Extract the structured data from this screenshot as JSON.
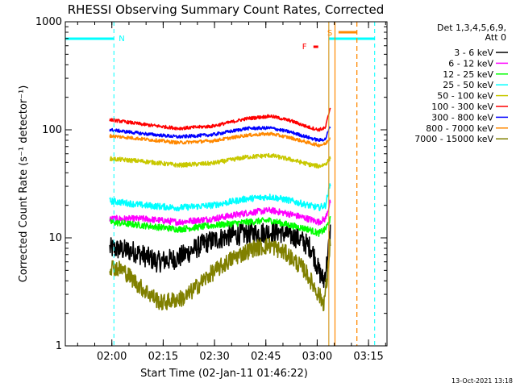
{
  "chart_data": {
    "type": "line",
    "title": "RHESSI Observing Summary Count Rates, Corrected",
    "xlabel": "Start Time (02-Jan-11 01:46:22)",
    "ylabel": "Corrected Count Rate (s⁻¹ detector⁻¹)",
    "x_unit": "minutes after 01:46:22 UT",
    "xlim": [
      0,
      94
    ],
    "ylim": [
      1,
      1000
    ],
    "y_scale": "log",
    "x_ticks": [
      "02:00",
      "02:15",
      "02:30",
      "02:45",
      "03:00",
      "03:15"
    ],
    "x_tick_values": [
      13.6,
      28.6,
      43.6,
      58.6,
      73.6,
      88.6
    ],
    "y_ticks": [
      "1",
      "10",
      "100",
      "1000"
    ],
    "y_tick_values": [
      1,
      10,
      100,
      1000
    ],
    "legend_header": [
      "Det 1,3,4,5,6,9,",
      "Att 0"
    ],
    "legend_position": "top-right",
    "data_start": 13.0,
    "data_end": 77.5,
    "series": [
      {
        "name": "3 - 6 keV",
        "color": "#000000",
        "noise": 0.1,
        "points": [
          [
            13,
            8
          ],
          [
            20,
            7.5
          ],
          [
            27,
            6
          ],
          [
            33,
            6.5
          ],
          [
            41,
            9
          ],
          [
            48,
            10.5
          ],
          [
            55,
            11
          ],
          [
            62,
            11.5
          ],
          [
            68,
            10
          ],
          [
            72,
            8
          ],
          [
            74,
            5
          ],
          [
            75.5,
            4
          ],
          [
            76.5,
            6
          ],
          [
            77.5,
            12
          ]
        ]
      },
      {
        "name": "6 - 12 keV",
        "color": "#ff00ff",
        "noise": 0.03,
        "points": [
          [
            13,
            15
          ],
          [
            23,
            15
          ],
          [
            33,
            14
          ],
          [
            43,
            15
          ],
          [
            53,
            17
          ],
          [
            60,
            18
          ],
          [
            66,
            16.5
          ],
          [
            71,
            15
          ],
          [
            74,
            14
          ],
          [
            76,
            15
          ],
          [
            77.5,
            22
          ]
        ]
      },
      {
        "name": "12 - 25 keV",
        "color": "#00ff00",
        "noise": 0.03,
        "points": [
          [
            13,
            14
          ],
          [
            23,
            13
          ],
          [
            33,
            12
          ],
          [
            43,
            13
          ],
          [
            53,
            14
          ],
          [
            60,
            14.5
          ],
          [
            66,
            13
          ],
          [
            71,
            12
          ],
          [
            74,
            11
          ],
          [
            76,
            12
          ],
          [
            77.5,
            15
          ]
        ]
      },
      {
        "name": "25 - 50 keV",
        "color": "#00ffff",
        "noise": 0.03,
        "points": [
          [
            13,
            22
          ],
          [
            23,
            20
          ],
          [
            33,
            19
          ],
          [
            43,
            20
          ],
          [
            53,
            23
          ],
          [
            60,
            24
          ],
          [
            66,
            22
          ],
          [
            71,
            20
          ],
          [
            74,
            19
          ],
          [
            76,
            20
          ],
          [
            77.5,
            32
          ]
        ]
      },
      {
        "name": "50 - 100 keV",
        "color": "#c8c800",
        "noise": 0.02,
        "points": [
          [
            13,
            54
          ],
          [
            23,
            51
          ],
          [
            33,
            47
          ],
          [
            43,
            49
          ],
          [
            53,
            56
          ],
          [
            60,
            58
          ],
          [
            66,
            53
          ],
          [
            71,
            48
          ],
          [
            74,
            46
          ],
          [
            76,
            48
          ],
          [
            77.5,
            55
          ]
        ]
      },
      {
        "name": "100 - 300 keV",
        "color": "#ff0000",
        "noise": 0.015,
        "points": [
          [
            13,
            124
          ],
          [
            23,
            112
          ],
          [
            33,
            103
          ],
          [
            43,
            108
          ],
          [
            53,
            127
          ],
          [
            60,
            134
          ],
          [
            66,
            121
          ],
          [
            71,
            106
          ],
          [
            74,
            100
          ],
          [
            76,
            104
          ],
          [
            77.5,
            165
          ]
        ]
      },
      {
        "name": "300 - 800 keV",
        "color": "#0000ff",
        "noise": 0.015,
        "points": [
          [
            13,
            100
          ],
          [
            23,
            92
          ],
          [
            33,
            86
          ],
          [
            43,
            90
          ],
          [
            53,
            103
          ],
          [
            60,
            104
          ],
          [
            66,
            95
          ],
          [
            71,
            85
          ],
          [
            74,
            80
          ],
          [
            76,
            82
          ],
          [
            77.5,
            110
          ]
        ]
      },
      {
        "name": "800 - 7000 keV",
        "color": "#ff8800",
        "noise": 0.015,
        "points": [
          [
            13,
            88
          ],
          [
            23,
            82
          ],
          [
            33,
            76
          ],
          [
            43,
            79
          ],
          [
            53,
            89
          ],
          [
            60,
            92
          ],
          [
            66,
            84
          ],
          [
            71,
            76
          ],
          [
            74,
            72
          ],
          [
            76,
            74
          ],
          [
            77.5,
            85
          ]
        ]
      },
      {
        "name": "7000 - 15000 keV",
        "color": "#808000",
        "noise": 0.08,
        "points": [
          [
            13,
            5.5
          ],
          [
            17,
            5
          ],
          [
            22,
            3.5
          ],
          [
            28,
            2.5
          ],
          [
            35,
            2.8
          ],
          [
            42,
            4.5
          ],
          [
            49,
            6.5
          ],
          [
            55,
            8
          ],
          [
            60,
            8.5
          ],
          [
            65,
            7
          ],
          [
            70,
            5
          ],
          [
            74,
            3
          ],
          [
            75.5,
            2.5
          ],
          [
            76.5,
            4
          ],
          [
            77.5,
            10
          ]
        ]
      }
    ],
    "night_intervals": [
      [
        0,
        14.2
      ],
      [
        77.0,
        90.4
      ]
    ],
    "night_label": "N",
    "saa_interval": [
      77.0,
      85.2
    ],
    "saa_label": "S",
    "flare_interval": [
      72.5,
      73.9
    ],
    "flare_label": "F",
    "attenuator_marker": 78.8
  },
  "timestamp": "13-Oct-2021 13:18"
}
